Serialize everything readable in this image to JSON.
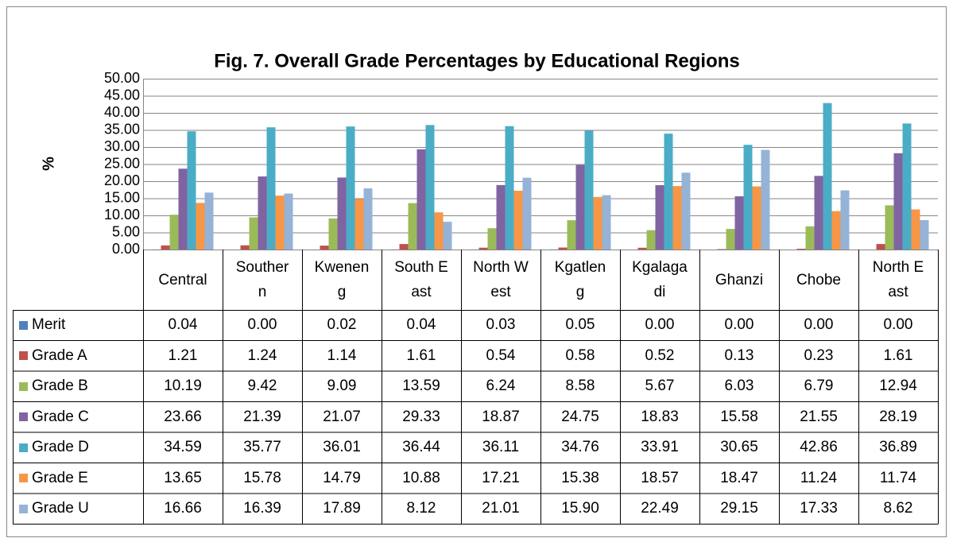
{
  "chart_data": {
    "type": "bar",
    "title": "Fig. 7. Overall Grade Percentages by Educational Regions",
    "y_label": "%",
    "categories": [
      "Central",
      "Southern",
      "Kweneng",
      "South East",
      "North West",
      "Kgatleng",
      "Kgalagadi",
      "Ghanzi",
      "Chobe",
      "North East"
    ],
    "series": [
      {
        "name": "Merit",
        "color": "#4f81bd",
        "values": [
          0.04,
          0,
          0.02,
          0.04,
          0.03,
          0.05,
          0,
          0,
          0,
          0
        ],
        "value_labels": [
          "0.04",
          "0.00",
          "0.02",
          "0.04",
          "0.03",
          "0.05",
          "0.00",
          "0.00",
          "0.00",
          "0.00"
        ]
      },
      {
        "name": "Grade A",
        "color": "#c0504d",
        "values": [
          1.21,
          1.24,
          1.14,
          1.61,
          0.54,
          0.58,
          0.52,
          0.13,
          0.23,
          1.61
        ],
        "value_labels": [
          "1.21",
          "1.24",
          "1.14",
          "1.61",
          "0.54",
          "0.58",
          "0.52",
          "0.13",
          "0.23",
          "1.61"
        ]
      },
      {
        "name": "Grade B",
        "color": "#9bbb59",
        "values": [
          10.19,
          9.42,
          9.09,
          13.59,
          6.24,
          8.58,
          5.67,
          6.03,
          6.79,
          12.94
        ],
        "value_labels": [
          "10.19",
          "9.42",
          "9.09",
          "13.59",
          "6.24",
          "8.58",
          "5.67",
          "6.03",
          "6.79",
          "12.94"
        ]
      },
      {
        "name": "Grade C",
        "color": "#8064a2",
        "values": [
          23.66,
          21.39,
          21.07,
          29.33,
          18.87,
          24.75,
          18.83,
          15.58,
          21.55,
          28.19
        ],
        "value_labels": [
          "23.66",
          "21.39",
          "21.07",
          "29.33",
          "18.87",
          "24.75",
          "18.83",
          "15.58",
          "21.55",
          "28.19"
        ]
      },
      {
        "name": "Grade D",
        "color": "#4bacc6",
        "values": [
          34.59,
          35.77,
          36.01,
          36.44,
          36.11,
          34.76,
          33.91,
          30.65,
          42.86,
          36.89
        ],
        "value_labels": [
          "34.59",
          "35.77",
          "36.01",
          "36.44",
          "36.11",
          "34.76",
          "33.91",
          "30.65",
          "42.86",
          "36.89"
        ]
      },
      {
        "name": "Grade E",
        "color": "#f79646",
        "values": [
          13.65,
          15.78,
          14.79,
          10.88,
          17.21,
          15.38,
          18.57,
          18.47,
          11.24,
          11.74
        ],
        "value_labels": [
          "13.65",
          "15.78",
          "14.79",
          "10.88",
          "17.21",
          "15.38",
          "18.57",
          "18.47",
          "11.24",
          "11.74"
        ]
      },
      {
        "name": "Grade U",
        "color": "#95b3d7",
        "values": [
          16.66,
          16.39,
          17.89,
          8.12,
          21.01,
          15.9,
          22.49,
          29.15,
          17.33,
          8.62
        ],
        "value_labels": [
          "16.66",
          "16.39",
          "17.89",
          "8.12",
          "21.01",
          "15.90",
          "22.49",
          "29.15",
          "17.33",
          "8.62"
        ]
      }
    ],
    "ylim": [
      0,
      50
    ],
    "yticks": [
      {
        "value": 0,
        "label": "0.00"
      },
      {
        "value": 5,
        "label": "5.00"
      },
      {
        "value": 10,
        "label": "10.00"
      },
      {
        "value": 15,
        "label": "15.00"
      },
      {
        "value": 20,
        "label": "20.00"
      },
      {
        "value": 25,
        "label": "25.00"
      },
      {
        "value": 30,
        "label": "30.00"
      },
      {
        "value": 35,
        "label": "35.00"
      },
      {
        "value": 40,
        "label": "40.00"
      },
      {
        "value": 45,
        "label": "45.00"
      },
      {
        "value": 50,
        "label": "50.00"
      }
    ],
    "grid": true,
    "data_table": true
  }
}
